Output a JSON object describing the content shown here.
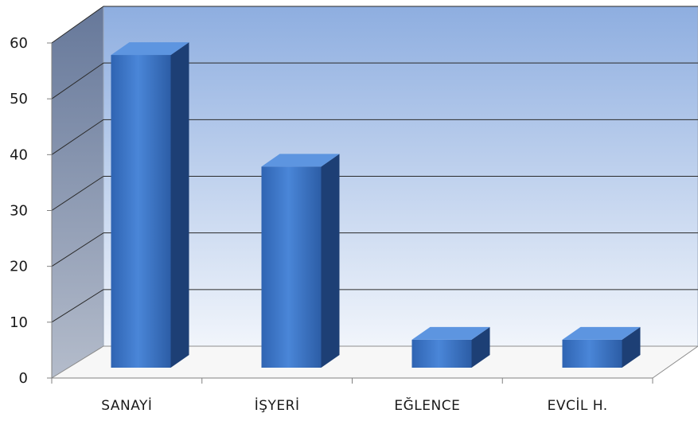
{
  "chart_data": {
    "type": "bar",
    "style": "3d-column",
    "categories": [
      "SANAYİ",
      "İŞYERİ",
      "EĞLENCE",
      "EVCİL H."
    ],
    "values": [
      56,
      36,
      5,
      5
    ],
    "ylim": [
      0,
      60
    ],
    "yticks": [
      "0",
      "10",
      "20",
      "30",
      "40",
      "50",
      "60"
    ],
    "title": "",
    "xlabel": "",
    "ylabel": "",
    "grid": true,
    "legend": "none",
    "colors": {
      "bar_front_top": "#4a86d8",
      "bar_front_bottom": "#2f62ad",
      "bar_side": "#1d3f75",
      "bar_top": "#5d95e0",
      "back_wall_top": "#8eaee0",
      "back_wall_bottom": "#eef3fb",
      "side_wall": "#7d8ea6",
      "floor": "#f7f7f7",
      "grid": "#2a2a2a"
    }
  }
}
